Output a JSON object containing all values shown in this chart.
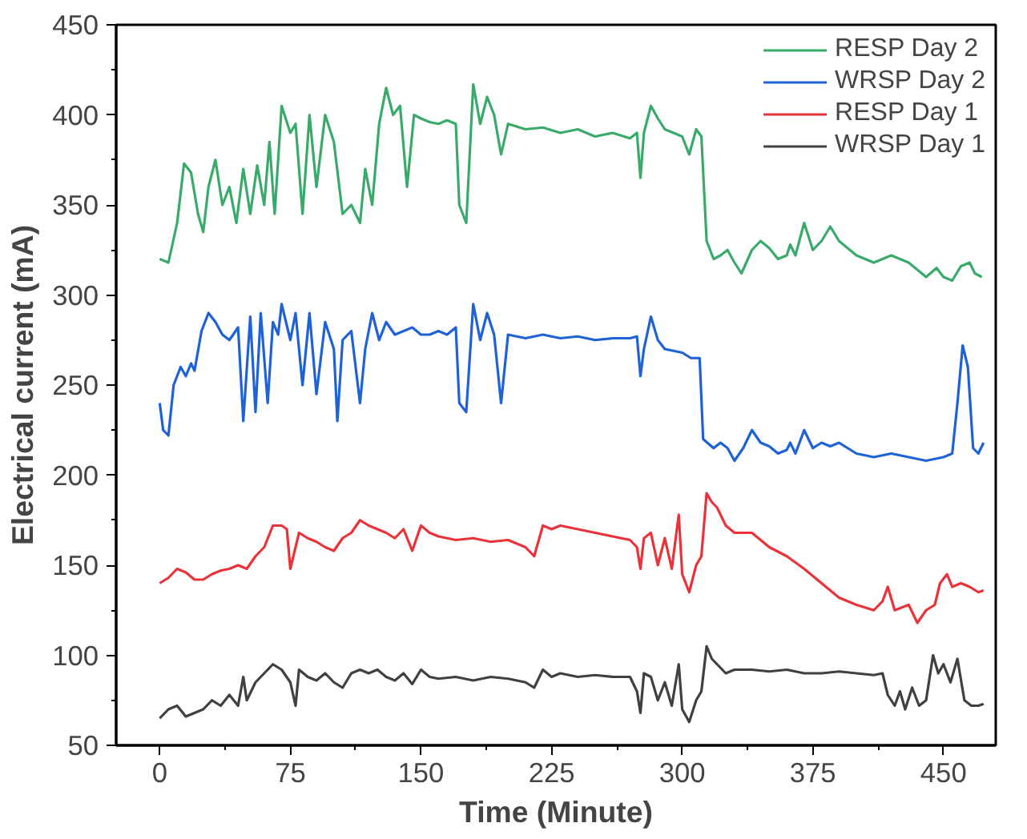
{
  "chart_data": {
    "type": "line",
    "xlabel": "Time (Minute)",
    "ylabel": "Electrical current (mA)",
    "xlim": [
      -25,
      480
    ],
    "ylim": [
      50,
      450
    ],
    "xticks": [
      0,
      75,
      150,
      225,
      300,
      375,
      450
    ],
    "yticks": [
      50,
      100,
      150,
      200,
      250,
      300,
      350,
      400,
      450
    ],
    "grid": false,
    "legend": "top right",
    "marker": "none",
    "line_style": "solid",
    "series": [
      {
        "name": "RESP Day 2",
        "color": "#3aaa6a",
        "x": [
          0,
          5,
          10,
          14,
          18,
          22,
          25,
          28,
          32,
          36,
          40,
          44,
          48,
          52,
          56,
          60,
          63,
          66,
          70,
          75,
          78,
          82,
          86,
          90,
          95,
          100,
          105,
          110,
          115,
          118,
          122,
          126,
          130,
          134,
          138,
          142,
          146,
          150,
          155,
          160,
          165,
          170,
          172,
          176,
          180,
          184,
          188,
          192,
          196,
          200,
          210,
          220,
          230,
          240,
          250,
          260,
          270,
          274,
          276,
          278,
          282,
          286,
          290,
          295,
          300,
          304,
          308,
          311,
          314,
          318,
          322,
          326,
          330,
          334,
          340,
          345,
          350,
          355,
          360,
          362,
          365,
          370,
          375,
          380,
          385,
          390,
          400,
          410,
          420,
          430,
          440,
          446,
          450,
          455,
          460,
          465,
          468,
          472
        ],
        "values": [
          320,
          318,
          340,
          373,
          368,
          345,
          335,
          360,
          375,
          350,
          360,
          340,
          370,
          345,
          372,
          350,
          385,
          345,
          405,
          390,
          395,
          345,
          400,
          360,
          400,
          385,
          345,
          350,
          340,
          370,
          350,
          395,
          415,
          400,
          405,
          360,
          400,
          398,
          396,
          395,
          397,
          395,
          350,
          340,
          417,
          395,
          410,
          400,
          378,
          395,
          392,
          393,
          390,
          392,
          388,
          390,
          387,
          390,
          365,
          390,
          405,
          398,
          392,
          390,
          388,
          378,
          392,
          388,
          330,
          320,
          322,
          325,
          318,
          312,
          325,
          330,
          326,
          320,
          322,
          328,
          322,
          340,
          325,
          330,
          338,
          330,
          322,
          318,
          322,
          318,
          310,
          315,
          310,
          308,
          316,
          318,
          312,
          310
        ]
      },
      {
        "name": "WRSP Day 2",
        "color": "#1f62d6",
        "x": [
          0,
          2,
          5,
          8,
          12,
          15,
          18,
          20,
          24,
          28,
          32,
          36,
          40,
          45,
          48,
          52,
          55,
          58,
          62,
          65,
          68,
          70,
          75,
          78,
          82,
          86,
          90,
          95,
          100,
          102,
          105,
          110,
          115,
          118,
          122,
          126,
          130,
          135,
          140,
          145,
          150,
          155,
          160,
          165,
          170,
          172,
          176,
          180,
          184,
          188,
          192,
          196,
          200,
          210,
          220,
          230,
          240,
          250,
          260,
          270,
          274,
          276,
          278,
          282,
          286,
          290,
          300,
          305,
          310,
          312,
          318,
          322,
          326,
          330,
          335,
          340,
          345,
          350,
          355,
          360,
          362,
          365,
          370,
          375,
          380,
          385,
          390,
          400,
          410,
          420,
          430,
          440,
          450,
          455,
          458,
          461,
          464,
          467,
          470,
          473
        ],
        "values": [
          240,
          225,
          222,
          250,
          260,
          255,
          262,
          258,
          280,
          290,
          285,
          278,
          275,
          282,
          230,
          288,
          235,
          290,
          240,
          285,
          278,
          295,
          275,
          290,
          250,
          290,
          245,
          285,
          270,
          230,
          275,
          280,
          240,
          270,
          290,
          275,
          285,
          278,
          280,
          282,
          278,
          278,
          280,
          278,
          282,
          240,
          235,
          295,
          275,
          290,
          278,
          240,
          278,
          276,
          278,
          276,
          277,
          275,
          276,
          276,
          277,
          255,
          270,
          288,
          275,
          270,
          268,
          265,
          265,
          220,
          215,
          218,
          215,
          208,
          215,
          225,
          218,
          216,
          212,
          214,
          218,
          212,
          225,
          215,
          218,
          216,
          218,
          212,
          210,
          212,
          210,
          208,
          210,
          212,
          240,
          272,
          260,
          215,
          212,
          218
        ]
      },
      {
        "name": "RESP Day 1",
        "color": "#e8333a",
        "x": [
          0,
          5,
          10,
          15,
          20,
          25,
          30,
          35,
          40,
          45,
          50,
          55,
          60,
          65,
          70,
          73,
          75,
          80,
          85,
          90,
          95,
          100,
          105,
          110,
          115,
          120,
          125,
          130,
          135,
          140,
          145,
          150,
          155,
          160,
          170,
          180,
          190,
          200,
          210,
          215,
          220,
          225,
          230,
          240,
          250,
          260,
          270,
          274,
          276,
          278,
          282,
          286,
          290,
          294,
          298,
          300,
          304,
          308,
          311,
          314,
          317,
          320,
          325,
          330,
          340,
          350,
          360,
          370,
          380,
          390,
          400,
          410,
          415,
          418,
          422,
          430,
          435,
          440,
          445,
          448,
          452,
          455,
          460,
          465,
          470,
          473
        ],
        "values": [
          140,
          143,
          148,
          146,
          142,
          142,
          145,
          147,
          148,
          150,
          148,
          155,
          160,
          172,
          172,
          170,
          148,
          168,
          165,
          163,
          160,
          158,
          165,
          168,
          175,
          172,
          170,
          168,
          165,
          170,
          158,
          172,
          168,
          166,
          164,
          165,
          163,
          164,
          160,
          155,
          172,
          170,
          172,
          170,
          168,
          166,
          164,
          160,
          148,
          165,
          168,
          150,
          165,
          148,
          178,
          145,
          135,
          150,
          155,
          190,
          185,
          182,
          172,
          168,
          168,
          160,
          155,
          148,
          140,
          132,
          128,
          125,
          130,
          138,
          125,
          128,
          118,
          125,
          128,
          140,
          145,
          138,
          140,
          138,
          135,
          136
        ]
      },
      {
        "name": "WRSP Day 1",
        "color": "#404040",
        "x": [
          0,
          5,
          10,
          15,
          20,
          25,
          30,
          35,
          40,
          45,
          48,
          50,
          55,
          60,
          65,
          70,
          75,
          78,
          80,
          85,
          90,
          95,
          100,
          105,
          110,
          115,
          120,
          125,
          130,
          135,
          140,
          145,
          150,
          155,
          160,
          170,
          180,
          190,
          200,
          210,
          215,
          220,
          225,
          230,
          240,
          250,
          260,
          270,
          274,
          276,
          278,
          282,
          286,
          290,
          294,
          298,
          300,
          304,
          308,
          311,
          314,
          317,
          320,
          325,
          330,
          340,
          350,
          360,
          370,
          380,
          390,
          400,
          410,
          415,
          418,
          422,
          425,
          428,
          432,
          436,
          440,
          444,
          447,
          450,
          454,
          458,
          462,
          466,
          470,
          473
        ],
        "values": [
          65,
          70,
          72,
          66,
          68,
          70,
          75,
          72,
          78,
          72,
          88,
          75,
          85,
          90,
          95,
          92,
          85,
          72,
          92,
          88,
          86,
          90,
          85,
          82,
          90,
          92,
          90,
          92,
          88,
          86,
          90,
          84,
          92,
          88,
          87,
          88,
          86,
          88,
          87,
          85,
          82,
          92,
          88,
          90,
          88,
          89,
          88,
          88,
          80,
          68,
          90,
          88,
          75,
          85,
          72,
          95,
          70,
          63,
          75,
          80,
          105,
          98,
          95,
          90,
          92,
          92,
          91,
          92,
          90,
          90,
          91,
          90,
          89,
          90,
          78,
          72,
          80,
          70,
          82,
          72,
          75,
          100,
          90,
          95,
          85,
          98,
          75,
          72,
          72,
          73
        ]
      }
    ]
  }
}
